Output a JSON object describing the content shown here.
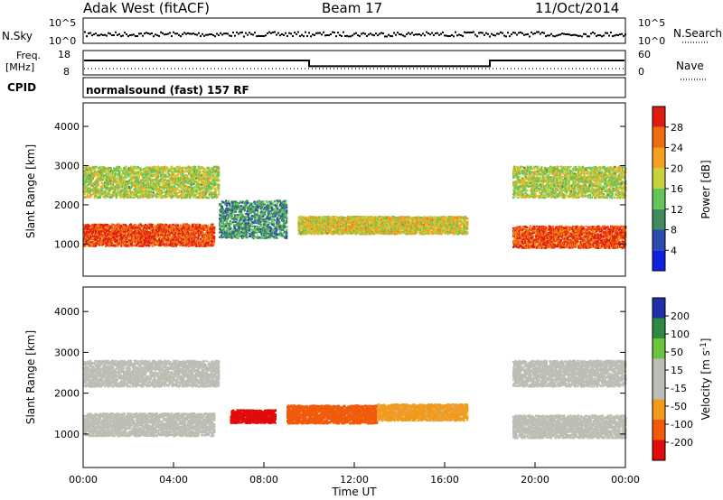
{
  "header": {
    "station": "Adak West (fitACF)",
    "beam": "Beam 17",
    "date": "11/Oct/2014"
  },
  "panels": {
    "nsky": {
      "label": "N.Sky",
      "left_ticks": [
        "10^5",
        "10^0"
      ],
      "right_ticks": [
        "10^5",
        "10^0"
      ],
      "right_label": "N.Search"
    },
    "freq": {
      "label_top": "Freq.",
      "label_unit": "[MHz]",
      "left_ticks": [
        "18",
        "8"
      ],
      "right_ticks": [
        "60",
        "0"
      ],
      "right_label": "Nave",
      "freq_levels_mhz": {
        "high": 13.5,
        "low": 10.3
      },
      "switch_times_ut_h": [
        10.0,
        18.0
      ]
    },
    "cpid": {
      "label": "CPID",
      "text": "normalsound (fast) 157 RF"
    }
  },
  "chart_data": [
    {
      "type": "heatmap",
      "title": "Power",
      "ylabel": "Slant Range [km]",
      "xlabel": "",
      "ylim": [
        180,
        4600
      ],
      "y_ticks": [
        "1000",
        "2000",
        "3000",
        "4000"
      ],
      "colorbar": {
        "label": "Power [dB]",
        "ticks": [
          "28",
          "24",
          "20",
          "16",
          "12",
          "8",
          "4"
        ],
        "range": [
          0,
          30
        ]
      },
      "regions": [
        {
          "t_range": [
            0.0,
            5.8
          ],
          "center_km": 1250,
          "width_km": 350,
          "value": 26
        },
        {
          "t_range": [
            0.0,
            6.0
          ],
          "center_km": 2600,
          "width_km": 500,
          "value": 16
        },
        {
          "t_range": [
            6.0,
            9.0
          ],
          "center_km": 1650,
          "width_km": 600,
          "value": 10
        },
        {
          "t_range": [
            9.5,
            17.0
          ],
          "center_km": 1500,
          "width_km": 280,
          "value": 18
        },
        {
          "t_range": [
            19.0,
            24.0
          ],
          "center_km": 1200,
          "width_km": 350,
          "value": 26
        },
        {
          "t_range": [
            19.0,
            24.0
          ],
          "center_km": 2600,
          "width_km": 500,
          "value": 16
        }
      ]
    },
    {
      "type": "heatmap",
      "title": "Velocity",
      "ylabel": "Slant Range [km]",
      "xlabel": "Time UT",
      "ylim": [
        180,
        4600
      ],
      "y_ticks": [
        "1000",
        "2000",
        "3000",
        "4000"
      ],
      "x_ticks": [
        "00:00",
        "04:00",
        "08:00",
        "12:00",
        "16:00",
        "20:00",
        "00:00"
      ],
      "colorbar": {
        "label": "Velocity [m s^-1]",
        "ticks": [
          "200",
          "100",
          "50",
          "15",
          "-15",
          "-50",
          "-100",
          "-200"
        ],
        "range": [
          -250,
          250
        ]
      },
      "regions": [
        {
          "t_range": [
            0.0,
            5.8
          ],
          "center_km": 1250,
          "width_km": 350,
          "value": 0
        },
        {
          "t_range": [
            0.0,
            6.0
          ],
          "center_km": 2500,
          "width_km": 400,
          "value": 0
        },
        {
          "t_range": [
            6.5,
            8.5
          ],
          "center_km": 1450,
          "width_km": 200,
          "value": -220
        },
        {
          "t_range": [
            9.0,
            13.0
          ],
          "center_km": 1500,
          "width_km": 280,
          "value": -160
        },
        {
          "t_range": [
            13.0,
            17.0
          ],
          "center_km": 1550,
          "width_km": 250,
          "value": -80
        },
        {
          "t_range": [
            19.0,
            24.0
          ],
          "center_km": 1200,
          "width_km": 350,
          "value": 0
        },
        {
          "t_range": [
            19.0,
            24.0
          ],
          "center_km": 2500,
          "width_km": 400,
          "value": 0
        }
      ]
    }
  ],
  "colors": {
    "power_scale": [
      "#1020e0",
      "#2a4ab0",
      "#3f8a5a",
      "#64c45a",
      "#c8d23a",
      "#f5a020",
      "#f06a10",
      "#e01b10"
    ],
    "velocity_scale": [
      "#e00c0c",
      "#f05a0a",
      "#f29a1a",
      "#bdbdb5",
      "#bdbdb5",
      "#6cc43c",
      "#2f8a3f",
      "#1e2fa8"
    ]
  }
}
